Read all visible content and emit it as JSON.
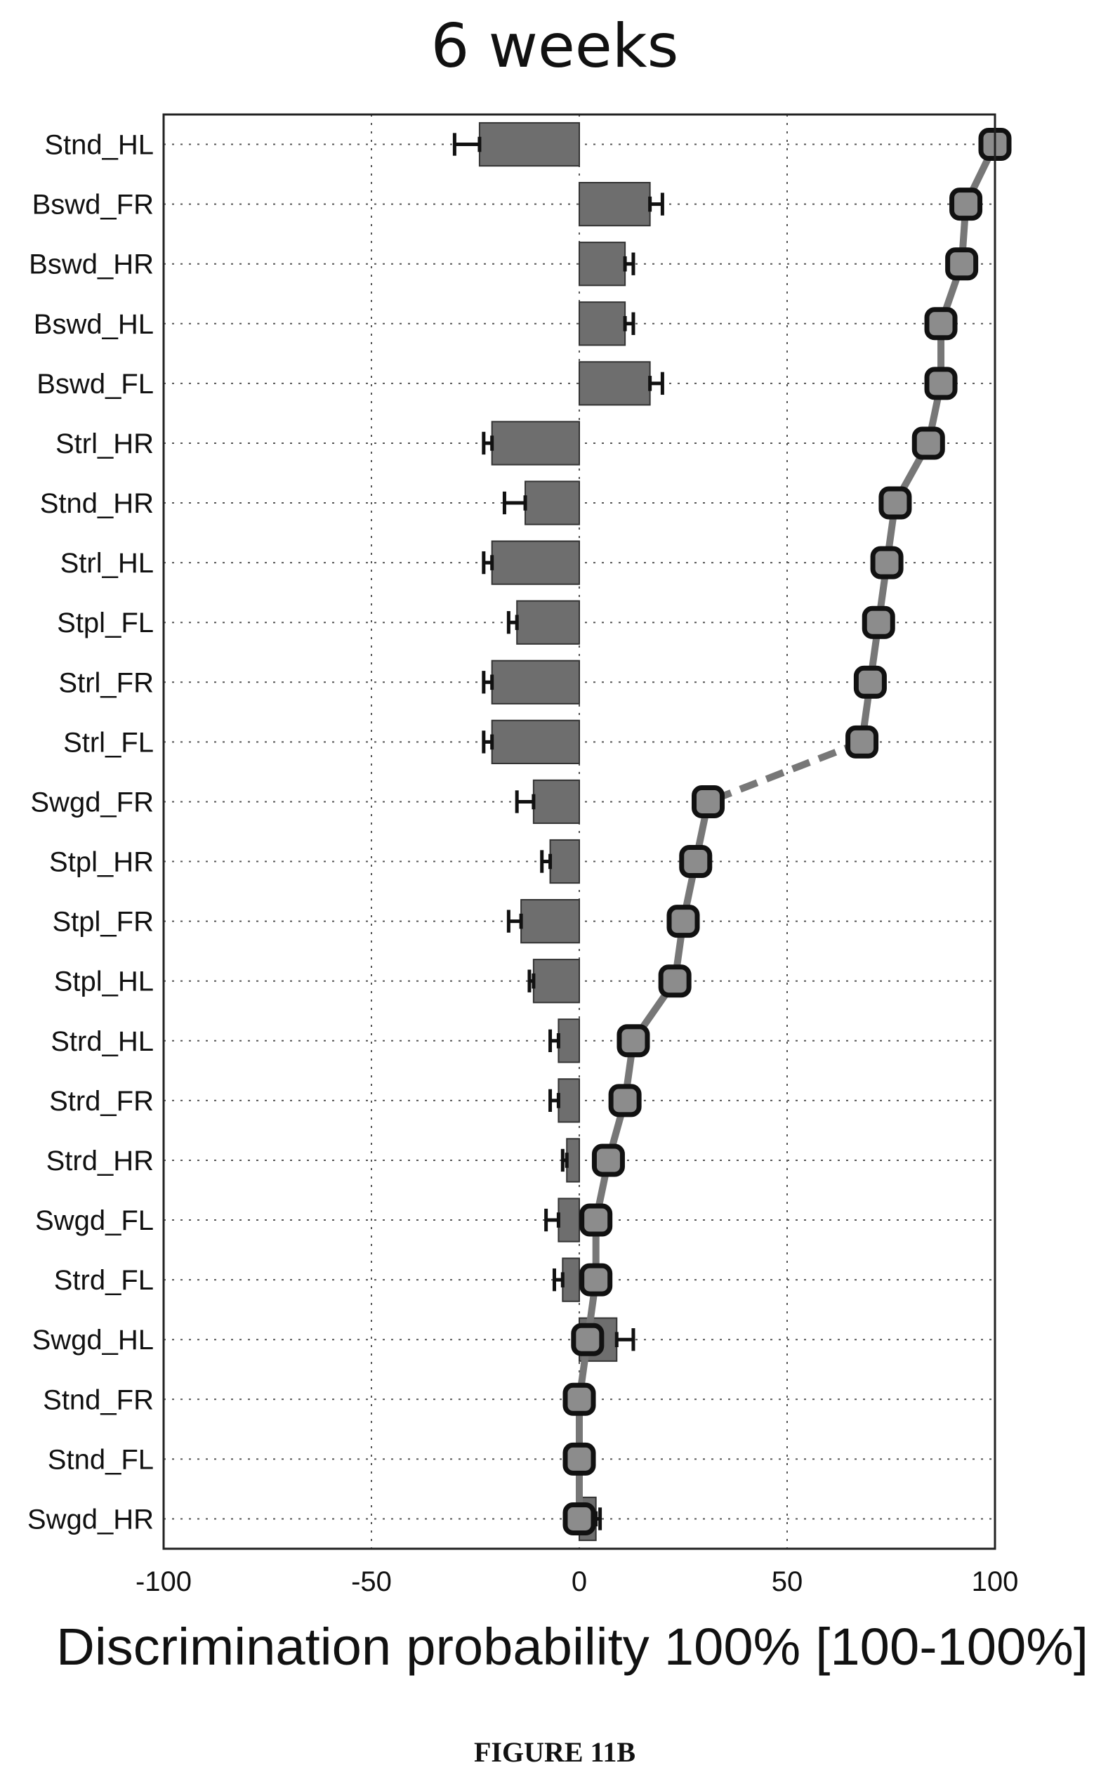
{
  "chart_data": {
    "type": "bar",
    "title": "6 weeks",
    "xlabel": "Discrimination probability 100% [100-100%]",
    "ylabel": "",
    "xlim": [
      -100,
      100
    ],
    "x_ticks": [
      -100,
      -50,
      0,
      50,
      100
    ],
    "x_tick_labels": [
      "-100",
      "-50",
      "0",
      "50",
      "100"
    ],
    "grid": true,
    "orientation": "horizontal",
    "categories": [
      "Stnd_HL",
      "Bswd_FR",
      "Bswd_HR",
      "Bswd_HL",
      "Bswd_FL",
      "Strl_HR",
      "Stnd_HR",
      "Strl_HL",
      "Stpl_FL",
      "Strl_FR",
      "Strl_FL",
      "Swgd_FR",
      "Stpl_HR",
      "Stpl_FR",
      "Stpl_HL",
      "Strd_HL",
      "Strd_FR",
      "Strd_HR",
      "Swgd_FL",
      "Strd_FL",
      "Swgd_HL",
      "Stnd_FR",
      "Stnd_FL",
      "Swgd_HR"
    ],
    "series": [
      {
        "kind": "bar",
        "values": [
          -24,
          17,
          11,
          11,
          17,
          -21,
          -13,
          -21,
          -15,
          -21,
          -21,
          -11,
          -7,
          -14,
          -11,
          -5,
          -5,
          -3,
          -5,
          -4,
          9,
          0,
          0,
          4
        ],
        "error": [
          6,
          3,
          2,
          2,
          3,
          2,
          5,
          2,
          2,
          2,
          2,
          4,
          2,
          3,
          1,
          2,
          2,
          1,
          3,
          2,
          4,
          0,
          0,
          1
        ]
      },
      {
        "kind": "line",
        "values": [
          100,
          93,
          92,
          87,
          87,
          84,
          76,
          74,
          72,
          70,
          68,
          31,
          28,
          25,
          23,
          13,
          11,
          7,
          4,
          4,
          2,
          0,
          0,
          0
        ],
        "dashed_segments": [
          [
            10,
            11
          ]
        ]
      }
    ]
  },
  "caption": "FIGURE 11B"
}
